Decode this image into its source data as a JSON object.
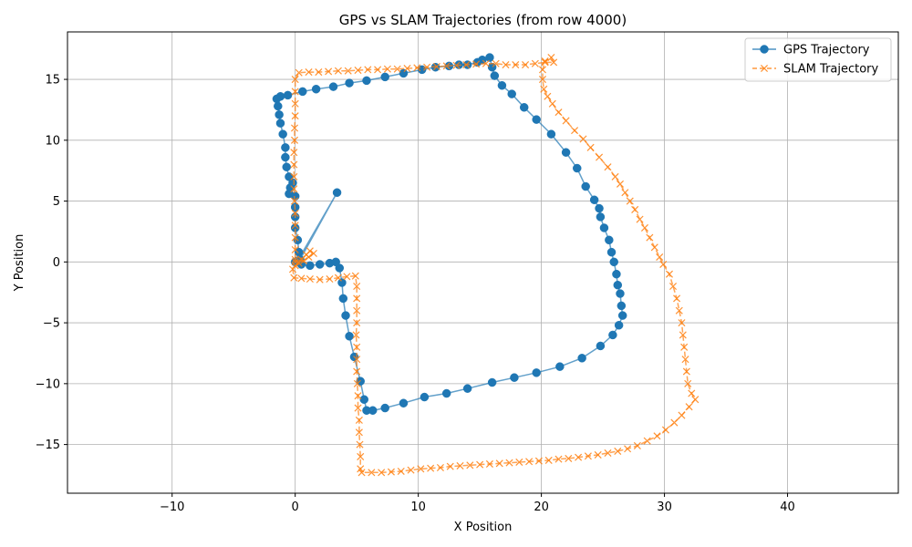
{
  "chart_data": {
    "type": "scatter",
    "title": "GPS vs SLAM Trajectories (from row 4000)",
    "xlabel": "X Position",
    "ylabel": "Y Position",
    "xlim": [
      -18.5,
      49.0
    ],
    "ylim": [
      -19.0,
      18.9
    ],
    "xticks": [
      -10,
      0,
      10,
      20,
      30,
      40
    ],
    "yticks": [
      -15,
      -10,
      -5,
      0,
      5,
      10,
      15
    ],
    "grid": true,
    "legend": "top-right",
    "series": [
      {
        "name": "GPS Trajectory",
        "color": "#1f77b4",
        "marker": "circle",
        "linestyle": "solid",
        "points": [
          [
            0,
            0
          ],
          [
            0.5,
            -0.2
          ],
          [
            1.2,
            -0.3
          ],
          [
            2.0,
            -0.2
          ],
          [
            2.8,
            -0.1
          ],
          [
            3.3,
            0.0
          ],
          [
            3.6,
            -0.5
          ],
          [
            3.8,
            -1.7
          ],
          [
            3.9,
            -3.0
          ],
          [
            4.1,
            -4.4
          ],
          [
            4.4,
            -6.1
          ],
          [
            4.8,
            -7.8
          ],
          [
            5.3,
            -9.8
          ],
          [
            5.6,
            -11.3
          ],
          [
            5.8,
            -12.2
          ],
          [
            6.3,
            -12.2
          ],
          [
            7.3,
            -12.0
          ],
          [
            8.8,
            -11.6
          ],
          [
            10.5,
            -11.1
          ],
          [
            12.3,
            -10.8
          ],
          [
            14.0,
            -10.4
          ],
          [
            16.0,
            -9.9
          ],
          [
            17.8,
            -9.5
          ],
          [
            19.6,
            -9.1
          ],
          [
            21.5,
            -8.6
          ],
          [
            23.3,
            -7.9
          ],
          [
            24.8,
            -6.9
          ],
          [
            25.8,
            -6.0
          ],
          [
            26.3,
            -5.2
          ],
          [
            26.6,
            -4.4
          ],
          [
            26.5,
            -3.6
          ],
          [
            26.4,
            -2.6
          ],
          [
            26.2,
            -1.9
          ],
          [
            26.1,
            -1.0
          ],
          [
            25.9,
            0.0
          ],
          [
            25.7,
            0.8
          ],
          [
            25.5,
            1.8
          ],
          [
            25.1,
            2.8
          ],
          [
            24.8,
            3.7
          ],
          [
            24.7,
            4.4
          ],
          [
            24.3,
            5.1
          ],
          [
            23.6,
            6.2
          ],
          [
            22.9,
            7.7
          ],
          [
            22.0,
            9.0
          ],
          [
            20.8,
            10.5
          ],
          [
            19.6,
            11.7
          ],
          [
            18.6,
            12.7
          ],
          [
            17.6,
            13.8
          ],
          [
            16.8,
            14.5
          ],
          [
            16.2,
            15.3
          ],
          [
            16.0,
            16.0
          ],
          [
            15.8,
            16.8
          ],
          [
            15.2,
            16.6
          ],
          [
            14.8,
            16.4
          ],
          [
            14.0,
            16.2
          ],
          [
            13.3,
            16.2
          ],
          [
            12.5,
            16.1
          ],
          [
            11.4,
            16.0
          ],
          [
            10.3,
            15.8
          ],
          [
            8.8,
            15.5
          ],
          [
            7.3,
            15.2
          ],
          [
            5.8,
            14.9
          ],
          [
            4.4,
            14.7
          ],
          [
            3.1,
            14.4
          ],
          [
            1.7,
            14.2
          ],
          [
            0.6,
            14.0
          ],
          [
            -0.6,
            13.7
          ],
          [
            -1.2,
            13.6
          ],
          [
            -1.5,
            13.4
          ],
          [
            -1.4,
            12.8
          ],
          [
            -1.3,
            12.1
          ],
          [
            -1.2,
            11.4
          ],
          [
            -1.0,
            10.5
          ],
          [
            -0.8,
            9.4
          ],
          [
            -0.8,
            8.6
          ],
          [
            -0.7,
            7.8
          ],
          [
            -0.5,
            7.0
          ],
          [
            -0.4,
            6.1
          ],
          [
            -0.2,
            6.5
          ],
          [
            -0.5,
            5.6
          ],
          [
            0,
            5.4
          ],
          [
            0,
            4.5
          ],
          [
            0,
            3.7
          ],
          [
            0,
            2.8
          ],
          [
            0.2,
            1.8
          ],
          [
            0.3,
            0.8
          ],
          [
            0.2,
            0.1
          ],
          [
            3.4,
            5.7
          ],
          [
            0.4,
            0.2
          ]
        ]
      },
      {
        "name": "SLAM Trajectory",
        "color": "#ff7f0e",
        "marker": "x",
        "linestyle": "dashed",
        "points": [
          [
            0,
            0
          ],
          [
            0.5,
            0.2
          ],
          [
            0.9,
            0.6
          ],
          [
            1.2,
            0.9
          ],
          [
            1.5,
            0.7
          ],
          [
            1.1,
            0.4
          ],
          [
            0.7,
            0.1
          ],
          [
            0.3,
            -0.1
          ],
          [
            0,
            -0.3
          ],
          [
            -0.2,
            -0.6
          ],
          [
            -0.1,
            -1.3
          ],
          [
            0.5,
            -1.35
          ],
          [
            1.2,
            -1.4
          ],
          [
            2.0,
            -1.45
          ],
          [
            2.8,
            -1.4
          ],
          [
            3.5,
            -1.3
          ],
          [
            4.2,
            -1.2
          ],
          [
            4.9,
            -1.15
          ],
          [
            5.0,
            -2.0
          ],
          [
            5.0,
            -3.0
          ],
          [
            5.0,
            -4.0
          ],
          [
            5.0,
            -5.0
          ],
          [
            4.95,
            -6.0
          ],
          [
            5.0,
            -7.0
          ],
          [
            5.0,
            -8.0
          ],
          [
            5.0,
            -9.0
          ],
          [
            5.05,
            -10.0
          ],
          [
            5.1,
            -11.0
          ],
          [
            5.1,
            -12.0
          ],
          [
            5.2,
            -13.0
          ],
          [
            5.2,
            -14.0
          ],
          [
            5.25,
            -15.0
          ],
          [
            5.3,
            -16.0
          ],
          [
            5.3,
            -17.0
          ],
          [
            5.4,
            -17.3
          ],
          [
            6.2,
            -17.3
          ],
          [
            7.0,
            -17.3
          ],
          [
            7.8,
            -17.25
          ],
          [
            8.6,
            -17.2
          ],
          [
            9.4,
            -17.1
          ],
          [
            10.2,
            -17.0
          ],
          [
            11.0,
            -16.95
          ],
          [
            11.8,
            -16.9
          ],
          [
            12.6,
            -16.8
          ],
          [
            13.4,
            -16.75
          ],
          [
            14.2,
            -16.7
          ],
          [
            15.0,
            -16.65
          ],
          [
            15.8,
            -16.6
          ],
          [
            16.6,
            -16.55
          ],
          [
            17.4,
            -16.5
          ],
          [
            18.2,
            -16.45
          ],
          [
            19.0,
            -16.4
          ],
          [
            19.8,
            -16.35
          ],
          [
            20.6,
            -16.3
          ],
          [
            21.4,
            -16.2
          ],
          [
            22.2,
            -16.15
          ],
          [
            23.0,
            -16.05
          ],
          [
            23.8,
            -15.95
          ],
          [
            24.6,
            -15.85
          ],
          [
            25.4,
            -15.7
          ],
          [
            26.2,
            -15.55
          ],
          [
            27.0,
            -15.35
          ],
          [
            27.8,
            -15.1
          ],
          [
            28.6,
            -14.7
          ],
          [
            29.4,
            -14.3
          ],
          [
            30.1,
            -13.8
          ],
          [
            30.8,
            -13.2
          ],
          [
            31.4,
            -12.6
          ],
          [
            32.0,
            -11.9
          ],
          [
            32.5,
            -11.3
          ],
          [
            32.2,
            -10.8
          ],
          [
            31.9,
            -10.0
          ],
          [
            31.8,
            -9.0
          ],
          [
            31.7,
            -8.0
          ],
          [
            31.6,
            -7.0
          ],
          [
            31.5,
            -6.0
          ],
          [
            31.4,
            -5.0
          ],
          [
            31.2,
            -4.0
          ],
          [
            31.0,
            -3.0
          ],
          [
            30.7,
            -2.0
          ],
          [
            30.4,
            -1.0
          ],
          [
            29.9,
            -0.2
          ],
          [
            29.6,
            0.4
          ],
          [
            29.2,
            1.2
          ],
          [
            28.8,
            2.0
          ],
          [
            28.4,
            2.8
          ],
          [
            28.0,
            3.5
          ],
          [
            27.6,
            4.3
          ],
          [
            27.2,
            5.0
          ],
          [
            26.8,
            5.7
          ],
          [
            26.4,
            6.4
          ],
          [
            26.0,
            7.0
          ],
          [
            25.4,
            7.8
          ],
          [
            24.7,
            8.6
          ],
          [
            24.0,
            9.4
          ],
          [
            23.4,
            10.1
          ],
          [
            22.7,
            10.8
          ],
          [
            22.0,
            11.6
          ],
          [
            21.4,
            12.3
          ],
          [
            20.9,
            13.0
          ],
          [
            20.5,
            13.6
          ],
          [
            20.2,
            14.2
          ],
          [
            20.1,
            15.0
          ],
          [
            20.1,
            15.8
          ],
          [
            20.3,
            16.5
          ],
          [
            20.8,
            16.8
          ],
          [
            21.0,
            16.4
          ],
          [
            20.3,
            16.4
          ],
          [
            19.5,
            16.3
          ],
          [
            18.7,
            16.2
          ],
          [
            17.9,
            16.2
          ],
          [
            17.1,
            16.2
          ],
          [
            16.3,
            16.3
          ],
          [
            15.5,
            16.3
          ],
          [
            14.7,
            16.25
          ],
          [
            13.9,
            16.2
          ],
          [
            13.1,
            16.15
          ],
          [
            12.3,
            16.1
          ],
          [
            11.5,
            16.05
          ],
          [
            10.7,
            16.0
          ],
          [
            9.9,
            15.95
          ],
          [
            9.1,
            15.9
          ],
          [
            8.3,
            15.85
          ],
          [
            7.5,
            15.85
          ],
          [
            6.7,
            15.8
          ],
          [
            5.9,
            15.8
          ],
          [
            5.1,
            15.75
          ],
          [
            4.3,
            15.7
          ],
          [
            3.5,
            15.7
          ],
          [
            2.7,
            15.65
          ],
          [
            1.9,
            15.6
          ],
          [
            1.1,
            15.6
          ],
          [
            0.3,
            15.55
          ],
          [
            0,
            15.0
          ],
          [
            0,
            14.0
          ],
          [
            0,
            13.0
          ],
          [
            0,
            12.0
          ],
          [
            -0.05,
            11.0
          ],
          [
            -0.05,
            10.0
          ],
          [
            -0.1,
            9.0
          ],
          [
            -0.1,
            8.0
          ],
          [
            -0.1,
            7.0
          ],
          [
            -0.1,
            6.0
          ],
          [
            -0.05,
            5.0
          ],
          [
            0,
            4.0
          ],
          [
            0,
            3.0
          ],
          [
            0,
            2.0
          ],
          [
            0,
            1.0
          ],
          [
            0,
            0.2
          ]
        ]
      }
    ]
  }
}
